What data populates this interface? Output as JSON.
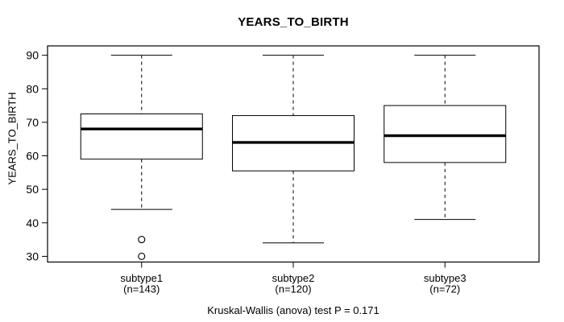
{
  "chart_data": {
    "type": "boxplot",
    "title": "YEARS_TO_BIRTH",
    "ylabel": "YEARS_TO_BIRTH",
    "xlabel": "",
    "caption": "Kruskal-Wallis (anova) test P = 0.171",
    "ylim": [
      28.3,
      92.8
    ],
    "yticks": [
      30,
      40,
      50,
      60,
      70,
      80,
      90
    ],
    "grid": false,
    "legend_position": "none",
    "background": "#ffffff",
    "line_color": "#000000",
    "categories": [
      {
        "label": "subtype1",
        "sublabel": "(n=143)"
      },
      {
        "label": "subtype2",
        "sublabel": "(n=120)"
      },
      {
        "label": "subtype3",
        "sublabel": "(n=72)"
      }
    ],
    "series": [
      {
        "name": "subtype1",
        "n": 143,
        "lower_whisker": 44,
        "q1": 59,
        "median": 68,
        "q3": 72.5,
        "upper_whisker": 90,
        "outliers": [
          35,
          30
        ]
      },
      {
        "name": "subtype2",
        "n": 120,
        "lower_whisker": 34,
        "q1": 55.5,
        "median": 64,
        "q3": 72,
        "upper_whisker": 90,
        "outliers": []
      },
      {
        "name": "subtype3",
        "n": 72,
        "lower_whisker": 41,
        "q1": 58,
        "median": 66,
        "q3": 75,
        "upper_whisker": 90,
        "outliers": []
      }
    ]
  }
}
